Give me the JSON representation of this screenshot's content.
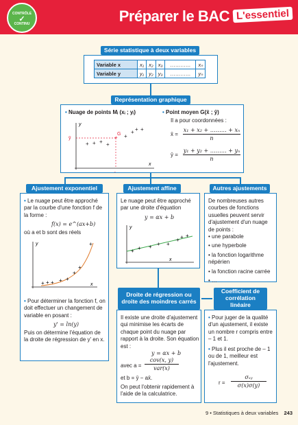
{
  "header": {
    "badge_top": "CONTRÔLE",
    "badge_bottom": "CONTINU",
    "title": "Préparer le BAC",
    "tag": "L'essentiel"
  },
  "serie": {
    "heading": "Série statistique à deux variables",
    "row_x_label": "Variable x",
    "row_y_label": "Variable y",
    "row_x": [
      "x₁",
      "x₂",
      "x₃",
      "…………",
      "xₙ"
    ],
    "row_y": [
      "y₁",
      "y₂",
      "y₃",
      "…………",
      "yₙ"
    ]
  },
  "representation": {
    "heading": "Représentation graphique",
    "nuage_title": "Nuage de points Mᵢ (xᵢ ; yᵢ)",
    "moyen_title": "Point moyen G(x̄ ; ȳ)",
    "moyen_text": "Il a pour coordonnées :",
    "eq_x_num": "x₁ + x₂ + ……… + xₙ",
    "eq_y_num": "y₁ + y₂ + ……… + yₙ",
    "eq_den": "n",
    "xbar": "x̄ =",
    "ybar": "ȳ =",
    "axis_x": "x",
    "axis_y": "y",
    "g_label": "G",
    "xbar_tick": "x̄",
    "ybar_tick": "ȳ"
  },
  "expo": {
    "heading": "Ajustement exponentiel",
    "p1": "Le nuage peut être approché par la courbe d'une fonction f de la forme :",
    "formula": "f(x) = e^(ax+b)",
    "p2": "où a et b sont des réels",
    "p3": "Pour déterminer la fonction f, on doit effectuer un changement de variable en posant :",
    "formula2": "y' = ln(y)",
    "p4": "Puis on détermine l'équation de la droite de régression de y' en x."
  },
  "affine": {
    "heading": "Ajustement affine",
    "p1": "Le nuage peut être approché par une droite d'équation",
    "formula": "y = αx + b"
  },
  "autres": {
    "heading": "Autres ajustements",
    "p1": "De nombreuses autres courbes de fonctions usuelles peuvent servir d'ajustement d'un nuage de points :",
    "items": [
      "une parabole",
      "une hyperbole",
      "la fonction logarithme népérien",
      "la fonction racine carrée",
      "…"
    ]
  },
  "droite": {
    "heading": "Droite de régression ou droite des moindres carrés",
    "p1": "Il existe une droite d'ajustement qui minimise les écarts de chaque point du nuage par rapport à la droite. Son équation est :",
    "formula": "y = αx + b",
    "avec": "avec a =",
    "cov": "cov(x, y)",
    "var": "var(x)",
    "b_eq": "et b = ȳ − ax̄.",
    "p2": "On peut l'obtenir rapidement à l'aide de la calculatrice."
  },
  "coef": {
    "heading": "Coefficient de corrélation linéaire",
    "p1": "Pour juger de la qualité d'un ajustement, il existe un nombre r compris entre – 1 et 1.",
    "p2": "Plus il est proche de – 1 ou de 1, meilleur est l'ajustement.",
    "r_eq": "r =",
    "num": "σₓᵧ",
    "den": "σ(x)σ(y)"
  },
  "footer": {
    "chapter": "9 • Statistiques à deux variables",
    "page": "243"
  },
  "colors": {
    "accent": "#e6203a",
    "blue": "#1b7fc3",
    "green": "#5bb54b",
    "curve": "#e07b2b",
    "line": "#3aa84a"
  }
}
